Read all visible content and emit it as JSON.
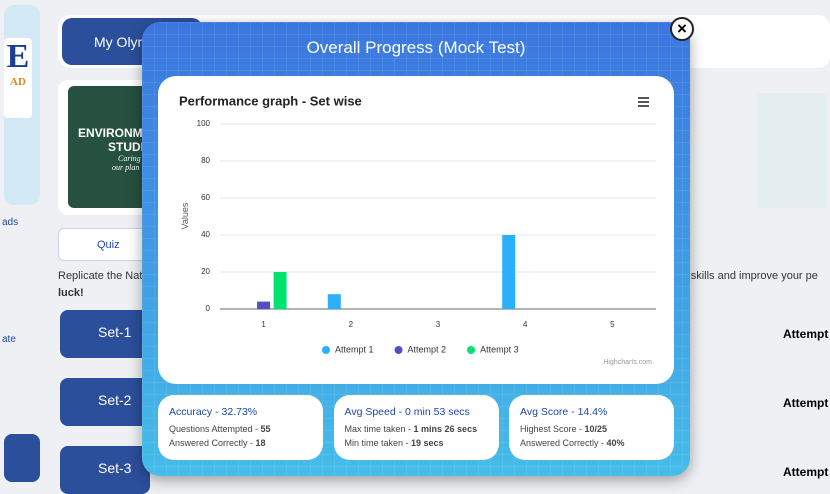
{
  "background": {
    "logo": "E",
    "logo_sub": "AD",
    "sidebar_texts": [
      "ads",
      "ate"
    ],
    "header_button": "My Olym",
    "card_title": [
      "ENVIRONM",
      "STUDI"
    ],
    "card_sub": [
      "Caring f",
      "our plan"
    ],
    "tab": "Quiz",
    "intro": [
      "Replicate the Nat",
      "luck!"
    ],
    "intro_right": "r skills and improve your pe",
    "sets": [
      "Set-1",
      "Set-2",
      "Set-3"
    ],
    "attempt": "Attempt"
  },
  "modal": {
    "title": "Overall Progress (Mock Test)",
    "close": "×"
  },
  "chart_data": {
    "type": "bar",
    "title": "Performance graph - Set wise",
    "y_label": "Values",
    "categories": [
      "1",
      "2",
      "3",
      "4",
      "5"
    ],
    "series": [
      {
        "name": "Attempt 1",
        "color": "#2caffe",
        "values": [
          null,
          8,
          null,
          40,
          null
        ]
      },
      {
        "name": "Attempt 2",
        "color": "#544fc5",
        "values": [
          4,
          null,
          null,
          null,
          null
        ]
      },
      {
        "name": "Attempt 3",
        "color": "#00e272",
        "values": [
          20,
          null,
          null,
          null,
          null
        ]
      }
    ],
    "ylim": [
      0,
      100
    ],
    "yticks": [
      0,
      20,
      40,
      60,
      80,
      100
    ],
    "grid": true,
    "legend": "bottom",
    "credits": "Highcharts.com"
  },
  "stats": [
    {
      "title": "Accuracy - 32.73%",
      "lines": [
        {
          "label": "Questions Attempted - ",
          "value": "55"
        },
        {
          "label": "Answered Correctly - ",
          "value": "18"
        }
      ]
    },
    {
      "title": "Avg Speed - 0 min 53 secs",
      "lines": [
        {
          "label": "Max time taken - ",
          "value": "1 mins 26 secs"
        },
        {
          "label": "Min time taken - ",
          "value": "19 secs"
        }
      ]
    },
    {
      "title": "Avg Score - 14.4%",
      "lines": [
        {
          "label": "Highest Score - ",
          "value": "10/25"
        },
        {
          "label": "Answered Correctly - ",
          "value": "40%"
        }
      ]
    }
  ]
}
